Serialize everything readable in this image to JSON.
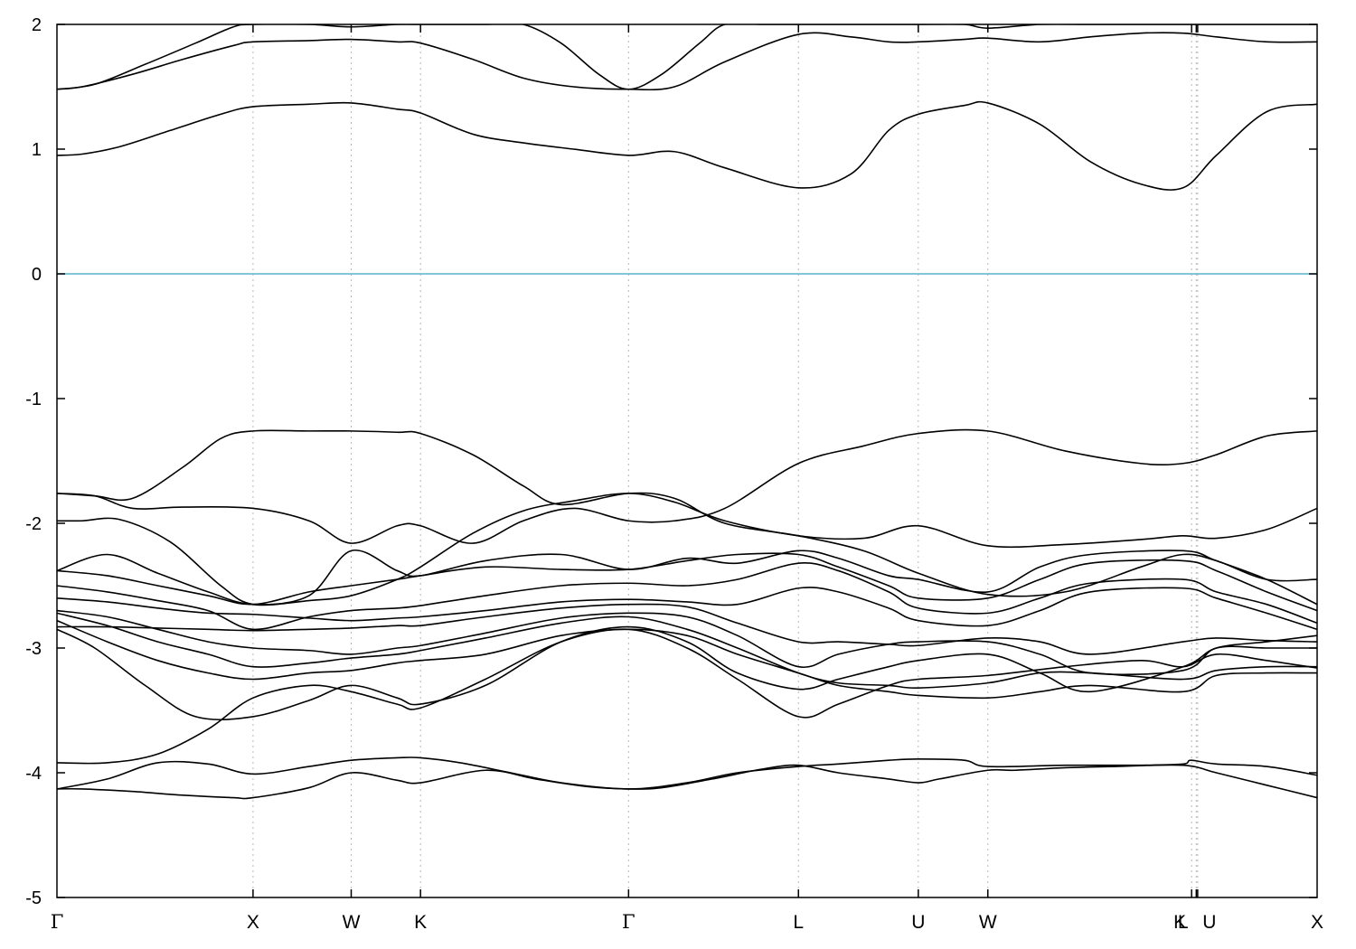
{
  "chart_data": {
    "type": "line",
    "title": "",
    "xlabel": "",
    "ylabel": "",
    "ylim": [
      -5,
      2
    ],
    "yticks": [
      -5,
      -4,
      -3,
      -2,
      -1,
      0,
      1,
      2
    ],
    "ytick_labels": [
      "-5",
      "-4",
      "-3",
      "-2",
      "-1",
      "0",
      "1",
      "2"
    ],
    "xlim": [
      0,
      1
    ],
    "high_symmetry_points": [
      {
        "label": "Γ",
        "x": 0.0
      },
      {
        "label": "X",
        "x": 0.1556
      },
      {
        "label": "W",
        "x": 0.2335
      },
      {
        "label": "K",
        "x": 0.2885
      },
      {
        "label": "Γ",
        "x": 0.4536
      },
      {
        "label": "L",
        "x": 0.5884
      },
      {
        "label": "U",
        "x": 0.6835
      },
      {
        "label": "W",
        "x": 0.7387
      },
      {
        "label": "L",
        "x": 0.9041
      },
      {
        "label": "K",
        "x": 0.9004
      },
      {
        "label": "U",
        "x": 0.9052
      },
      {
        "label": "X",
        "x": 1.0
      }
    ],
    "fermi_level": {
      "y": 0,
      "color": "#5ab4cc"
    },
    "grid": "vertical dotted at high-symmetry points",
    "line_color": "#000000",
    "bands_note": "",
    "series": [
      {
        "x": [
          0.0,
          0.02,
          0.06,
          0.1,
          0.14,
          0.1556,
          0.2,
          0.2335,
          0.27,
          0.2885,
          0.34,
          0.38,
          0.42,
          0.4536,
          0.48,
          0.52,
          0.56,
          0.5884,
          0.62,
          0.66,
          0.6835,
          0.7,
          0.7387,
          0.76,
          0.8,
          0.84,
          0.8936,
          0.92,
          0.96,
          1.0
        ],
        "values": [
          -4.13,
          -4.13,
          -4.15,
          -4.18,
          -4.2,
          -4.2,
          -4.12,
          -4.0,
          -4.06,
          -4.08,
          -3.98,
          -4.05,
          -4.11,
          -4.13,
          -4.12,
          -4.05,
          -3.97,
          -3.94,
          -4.0,
          -4.05,
          -4.08,
          -4.05,
          -3.98,
          -3.98,
          -3.96,
          -3.95,
          -3.94,
          -4.0,
          -4.1,
          -4.2
        ]
      },
      {
        "x": [
          0.0,
          0.04,
          0.08,
          0.12,
          0.1556,
          0.2,
          0.2335,
          0.27,
          0.2885,
          0.32,
          0.36,
          0.4,
          0.4536,
          0.5,
          0.54,
          0.5884,
          0.62,
          0.66,
          0.6835,
          0.72,
          0.7387,
          0.8,
          0.86,
          0.8936,
          0.92,
          0.9,
          0.96,
          1.0
        ],
        "values": [
          -4.13,
          -4.05,
          -3.92,
          -3.93,
          -4.01,
          -3.95,
          -3.9,
          -3.88,
          -3.88,
          -3.92,
          -4.0,
          -4.08,
          -4.13,
          -4.08,
          -4.0,
          -3.95,
          -3.93,
          -3.9,
          -3.89,
          -3.9,
          -3.95,
          -3.94,
          -3.94,
          -3.93,
          -3.93,
          -3.9,
          -3.95,
          -4.02
        ]
      },
      {
        "x": [
          0.0,
          0.04,
          0.08,
          0.12,
          0.1556,
          0.2,
          0.2335,
          0.27,
          0.2885,
          0.34,
          0.4,
          0.4536,
          0.5,
          0.54,
          0.5884,
          0.62,
          0.66,
          0.6835,
          0.7387,
          0.8,
          0.86,
          0.8936,
          0.92,
          0.96,
          1.0
        ],
        "values": [
          -3.92,
          -3.92,
          -3.85,
          -3.65,
          -3.4,
          -3.3,
          -3.35,
          -3.45,
          -3.48,
          -3.25,
          -2.95,
          -2.85,
          -3.0,
          -3.25,
          -3.55,
          -3.45,
          -3.3,
          -3.25,
          -3.22,
          -3.15,
          -3.1,
          -3.15,
          -3.05,
          -3.1,
          -3.16
        ]
      },
      {
        "x": [
          0.0,
          0.03,
          0.07,
          0.11,
          0.1556,
          0.2,
          0.2335,
          0.27,
          0.2885,
          0.34,
          0.4,
          0.4536,
          0.5,
          0.54,
          0.5884,
          0.62,
          0.66,
          0.6835,
          0.7387,
          0.78,
          0.82,
          0.8936,
          0.92,
          0.96,
          1.0
        ],
        "values": [
          -2.85,
          -3.0,
          -3.3,
          -3.55,
          -3.55,
          -3.42,
          -3.3,
          -3.4,
          -3.45,
          -3.3,
          -2.95,
          -2.83,
          -2.95,
          -3.2,
          -3.33,
          -3.25,
          -3.15,
          -3.1,
          -3.05,
          -3.2,
          -3.35,
          -3.15,
          -3.0,
          -2.95,
          -2.9
        ]
      },
      {
        "x": [
          0.0,
          0.04,
          0.08,
          0.12,
          0.1556,
          0.2,
          0.2335,
          0.27,
          0.2885,
          0.34,
          0.4,
          0.4536,
          0.5,
          0.54,
          0.5884,
          0.62,
          0.66,
          0.6835,
          0.7387,
          0.78,
          0.82,
          0.8936,
          0.92,
          0.96,
          1.0
        ],
        "values": [
          -2.78,
          -2.95,
          -3.1,
          -3.2,
          -3.25,
          -3.2,
          -3.18,
          -3.12,
          -3.1,
          -3.05,
          -2.9,
          -2.85,
          -2.9,
          -3.05,
          -3.2,
          -3.3,
          -3.35,
          -3.38,
          -3.4,
          -3.35,
          -3.3,
          -3.35,
          -3.22,
          -3.2,
          -3.2
        ]
      },
      {
        "x": [
          0.0,
          0.04,
          0.08,
          0.12,
          0.1556,
          0.2,
          0.2335,
          0.27,
          0.2885,
          0.34,
          0.4,
          0.4536,
          0.5,
          0.54,
          0.5884,
          0.62,
          0.66,
          0.6835,
          0.7387,
          0.78,
          0.82,
          0.8936,
          0.92,
          0.96,
          1.0
        ],
        "values": [
          -2.72,
          -2.82,
          -2.95,
          -3.05,
          -3.15,
          -3.12,
          -3.08,
          -3.05,
          -3.02,
          -2.92,
          -2.8,
          -2.75,
          -2.85,
          -3.0,
          -3.2,
          -3.28,
          -3.3,
          -3.32,
          -3.28,
          -3.2,
          -3.2,
          -3.25,
          -3.18,
          -3.15,
          -3.15
        ]
      },
      {
        "x": [
          0.0,
          0.04,
          0.08,
          0.12,
          0.1556,
          0.2,
          0.2335,
          0.27,
          0.2885,
          0.34,
          0.4,
          0.4536,
          0.5,
          0.54,
          0.5884,
          0.62,
          0.66,
          0.6835,
          0.7387,
          0.78,
          0.82,
          0.8936,
          0.92,
          0.96,
          1.0
        ],
        "values": [
          -2.7,
          -2.75,
          -2.85,
          -2.95,
          -3.0,
          -3.02,
          -3.05,
          -3.0,
          -2.98,
          -2.88,
          -2.76,
          -2.72,
          -2.75,
          -2.9,
          -3.15,
          -3.05,
          -2.97,
          -2.95,
          -2.95,
          -3.05,
          -3.2,
          -3.18,
          -3.0,
          -3.0,
          -3.0
        ]
      },
      {
        "x": [
          0.0,
          0.04,
          0.08,
          0.12,
          0.1556,
          0.2,
          0.2335,
          0.27,
          0.2885,
          0.34,
          0.4,
          0.4536,
          0.5,
          0.54,
          0.5884,
          0.62,
          0.66,
          0.6835,
          0.7387,
          0.78,
          0.82,
          0.8936,
          0.92,
          0.96,
          1.0
        ],
        "values": [
          -2.83,
          -2.83,
          -2.84,
          -2.85,
          -2.86,
          -2.85,
          -2.84,
          -2.82,
          -2.82,
          -2.75,
          -2.68,
          -2.65,
          -2.67,
          -2.8,
          -2.95,
          -2.95,
          -2.97,
          -2.98,
          -2.92,
          -2.95,
          -3.05,
          -2.95,
          -2.92,
          -2.94,
          -2.95
        ]
      },
      {
        "x": [
          0.0,
          0.04,
          0.08,
          0.12,
          0.1556,
          0.2,
          0.2335,
          0.27,
          0.2885,
          0.34,
          0.4,
          0.4536,
          0.5,
          0.54,
          0.5884,
          0.62,
          0.66,
          0.6835,
          0.7387,
          0.78,
          0.82,
          0.8936,
          0.92,
          0.96,
          1.0
        ],
        "values": [
          -2.6,
          -2.63,
          -2.68,
          -2.72,
          -2.73,
          -2.76,
          -2.78,
          -2.76,
          -2.75,
          -2.7,
          -2.63,
          -2.61,
          -2.63,
          -2.65,
          -2.52,
          -2.55,
          -2.68,
          -2.78,
          -2.82,
          -2.7,
          -2.55,
          -2.52,
          -2.6,
          -2.72,
          -2.85
        ]
      },
      {
        "x": [
          0.0,
          0.04,
          0.08,
          0.12,
          0.1556,
          0.2,
          0.2335,
          0.27,
          0.2885,
          0.34,
          0.4,
          0.4536,
          0.5,
          0.54,
          0.5884,
          0.62,
          0.66,
          0.6835,
          0.7387,
          0.78,
          0.82,
          0.8936,
          0.92,
          0.96,
          1.0
        ],
        "values": [
          -2.5,
          -2.55,
          -2.62,
          -2.7,
          -2.85,
          -2.75,
          -2.7,
          -2.68,
          -2.66,
          -2.58,
          -2.5,
          -2.48,
          -2.5,
          -2.45,
          -2.32,
          -2.38,
          -2.55,
          -2.68,
          -2.72,
          -2.6,
          -2.48,
          -2.45,
          -2.55,
          -2.65,
          -2.8
        ]
      },
      {
        "x": [
          0.0,
          0.04,
          0.08,
          0.12,
          0.1556,
          0.2,
          0.2335,
          0.27,
          0.2885,
          0.34,
          0.4,
          0.4536,
          0.5,
          0.54,
          0.5884,
          0.62,
          0.66,
          0.6835,
          0.7387,
          0.78,
          0.82,
          0.8936,
          0.92,
          0.96,
          1.0
        ],
        "values": [
          -2.38,
          -2.42,
          -2.5,
          -2.58,
          -2.65,
          -2.55,
          -2.5,
          -2.45,
          -2.42,
          -2.35,
          -2.37,
          -2.37,
          -2.3,
          -2.25,
          -2.25,
          -2.35,
          -2.5,
          -2.6,
          -2.6,
          -2.45,
          -2.32,
          -2.3,
          -2.38,
          -2.55,
          -2.7
        ]
      },
      {
        "x": [
          0.0,
          0.04,
          0.08,
          0.12,
          0.1556,
          0.2,
          0.2335,
          0.27,
          0.2885,
          0.34,
          0.4,
          0.4536,
          0.5,
          0.54,
          0.5884,
          0.62,
          0.66,
          0.6835,
          0.7387,
          0.78,
          0.82,
          0.8936,
          0.92,
          0.96,
          1.0
        ],
        "values": [
          -2.38,
          -2.25,
          -2.4,
          -2.55,
          -2.65,
          -2.58,
          -2.22,
          -2.38,
          -2.42,
          -2.3,
          -2.25,
          -2.37,
          -2.28,
          -2.32,
          -2.22,
          -2.28,
          -2.42,
          -2.45,
          -2.55,
          -2.35,
          -2.25,
          -2.22,
          -2.3,
          -2.45,
          -2.65
        ]
      },
      {
        "x": [
          0.0,
          0.02,
          0.05,
          0.09,
          0.13,
          0.1556,
          0.2,
          0.2335,
          0.27,
          0.2885,
          0.33,
          0.37,
          0.41,
          0.4536,
          0.49,
          0.53,
          0.5884,
          0.64,
          0.6835,
          0.7387,
          0.8,
          0.86,
          0.8936,
          0.92,
          0.96,
          1.0
        ],
        "values": [
          -1.98,
          -1.98,
          -1.97,
          -2.15,
          -2.5,
          -2.65,
          -2.62,
          -2.58,
          -2.45,
          -2.35,
          -2.08,
          -1.9,
          -1.82,
          -1.76,
          -1.83,
          -1.98,
          -2.1,
          -2.12,
          -2.02,
          -2.18,
          -2.17,
          -2.13,
          -2.1,
          -2.12,
          -2.05,
          -1.88
        ]
      },
      {
        "x": [
          0.0,
          0.03,
          0.06,
          0.1,
          0.1556,
          0.2,
          0.2335,
          0.27,
          0.2885,
          0.33,
          0.37,
          0.41,
          0.4536,
          0.49,
          0.53,
          0.5884,
          0.64,
          0.6835,
          0.7387,
          0.8,
          0.86,
          0.8936,
          0.92,
          0.96,
          1.0
        ],
        "values": [
          -1.76,
          -1.78,
          -1.88,
          -1.87,
          -1.88,
          -1.98,
          -2.16,
          -2.02,
          -2.02,
          -2.16,
          -1.98,
          -1.88,
          -1.98,
          -1.98,
          -1.88,
          -1.52,
          -1.38,
          -1.28,
          -1.26,
          -1.42,
          -1.52,
          -1.52,
          -1.45,
          -1.3,
          -1.26
        ]
      },
      {
        "x": [
          0.0,
          0.03,
          0.06,
          0.1,
          0.13,
          0.1556,
          0.2,
          0.2335,
          0.27,
          0.2885,
          0.33,
          0.37,
          0.4,
          0.4536,
          0.49,
          0.53,
          0.5884,
          0.64,
          0.6835,
          0.7387,
          0.8,
          0.86,
          0.8936,
          0.92,
          0.96,
          1.0
        ],
        "values": [
          -1.76,
          -1.78,
          -1.8,
          -1.55,
          -1.32,
          -1.26,
          -1.26,
          -1.26,
          -1.27,
          -1.28,
          -1.45,
          -1.7,
          -1.85,
          -1.76,
          -1.8,
          -2.0,
          -2.1,
          -2.22,
          -2.4,
          -2.57,
          -2.55,
          -2.35,
          -2.25,
          -2.3,
          -2.45,
          -2.45
        ]
      },
      {
        "x": [
          0.0,
          0.02,
          0.05,
          0.09,
          0.13,
          0.1556,
          0.2,
          0.2335,
          0.27,
          0.2885,
          0.33,
          0.37,
          0.41,
          0.4536,
          0.49,
          0.53,
          0.5884,
          0.63,
          0.66,
          0.6835,
          0.72,
          0.7387,
          0.78,
          0.82,
          0.86,
          0.8936,
          0.92,
          0.96,
          1.0
        ],
        "values": [
          0.95,
          0.96,
          1.02,
          1.15,
          1.28,
          1.34,
          1.36,
          1.37,
          1.32,
          1.29,
          1.12,
          1.05,
          1.0,
          0.95,
          0.98,
          0.85,
          0.69,
          0.8,
          1.15,
          1.28,
          1.35,
          1.37,
          1.2,
          0.9,
          0.72,
          0.69,
          0.95,
          1.3,
          1.36
        ]
      },
      {
        "x": [
          0.0,
          0.02,
          0.06,
          0.1,
          0.14,
          0.1556,
          0.2,
          0.2335,
          0.27,
          0.2885,
          0.33,
          0.37,
          0.41,
          0.4536,
          0.49,
          0.53,
          0.5884,
          0.63,
          0.66,
          0.6835,
          0.72,
          0.7387,
          0.78,
          0.82,
          0.86,
          0.8936,
          0.92,
          0.96,
          1.0
        ],
        "values": [
          1.48,
          1.5,
          1.6,
          1.72,
          1.83,
          1.86,
          1.87,
          1.88,
          1.86,
          1.85,
          1.72,
          1.57,
          1.5,
          1.48,
          1.5,
          1.7,
          1.92,
          1.9,
          1.86,
          1.86,
          1.88,
          1.89,
          1.86,
          1.9,
          1.93,
          1.93,
          1.9,
          1.86,
          1.86
        ]
      },
      {
        "x": [
          0.0,
          0.03,
          0.07,
          0.11,
          0.14,
          0.1556,
          0.2,
          0.2335,
          0.27,
          0.2885,
          0.31,
          0.34,
          0.37,
          0.4,
          0.43,
          0.4536,
          0.48,
          0.51,
          0.53,
          0.56,
          0.5884,
          0.63,
          0.66,
          0.6835,
          0.72,
          0.7387,
          0.78,
          0.82,
          0.86,
          0.8936,
          0.92,
          0.96,
          1.0
        ],
        "values": [
          1.48,
          1.52,
          1.68,
          1.85,
          1.98,
          2.0,
          2.0,
          1.98,
          2.0,
          2.0,
          2.0,
          2.0,
          2.0,
          1.85,
          1.6,
          1.48,
          1.6,
          1.85,
          2.0,
          2.0,
          2.0,
          2.0,
          2.0,
          2.0,
          2.0,
          1.97,
          2.0,
          2.0,
          2.0,
          2.0,
          2.0,
          2.0,
          2.0
        ]
      }
    ]
  }
}
